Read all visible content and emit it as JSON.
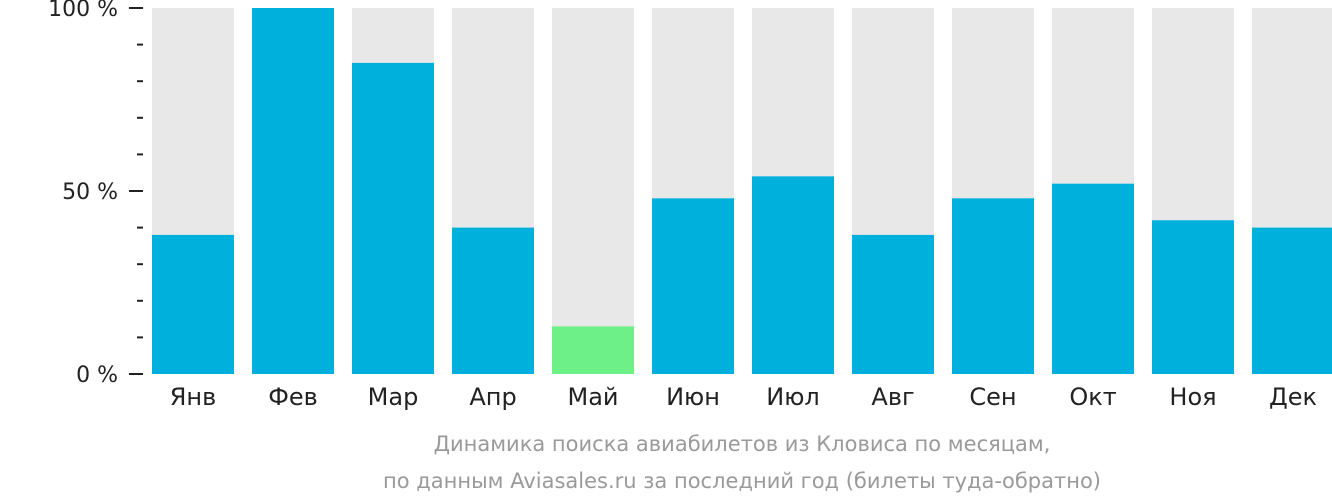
{
  "chart_data": {
    "type": "bar",
    "categories": [
      "Янв",
      "Фев",
      "Мар",
      "Апр",
      "Май",
      "Июн",
      "Июл",
      "Авг",
      "Сен",
      "Окт",
      "Ноя",
      "Дек"
    ],
    "values": [
      38,
      100,
      85,
      40,
      13,
      48,
      54,
      38,
      48,
      52,
      42,
      40
    ],
    "highlight_index": 4,
    "ylim": [
      0,
      100
    ],
    "y_ticks": [
      {
        "value": 0,
        "label": "0 %"
      },
      {
        "value": 50,
        "label": "50 %"
      },
      {
        "value": 100,
        "label": "100 %"
      }
    ],
    "y_minor_step": 10,
    "caption": [
      "Динамика поиска авиабилетов из Кловиса по месяцам,",
      "по данным Aviasales.ru за последний год (билеты туда-обратно)"
    ],
    "grid": false,
    "legend": "none"
  },
  "colors": {
    "bar": "#00b0dc",
    "highlight": "#6cf087",
    "track": "#e8e8e8",
    "axis": "#222222",
    "label": "#222222",
    "caption": "#9a9a9a"
  }
}
